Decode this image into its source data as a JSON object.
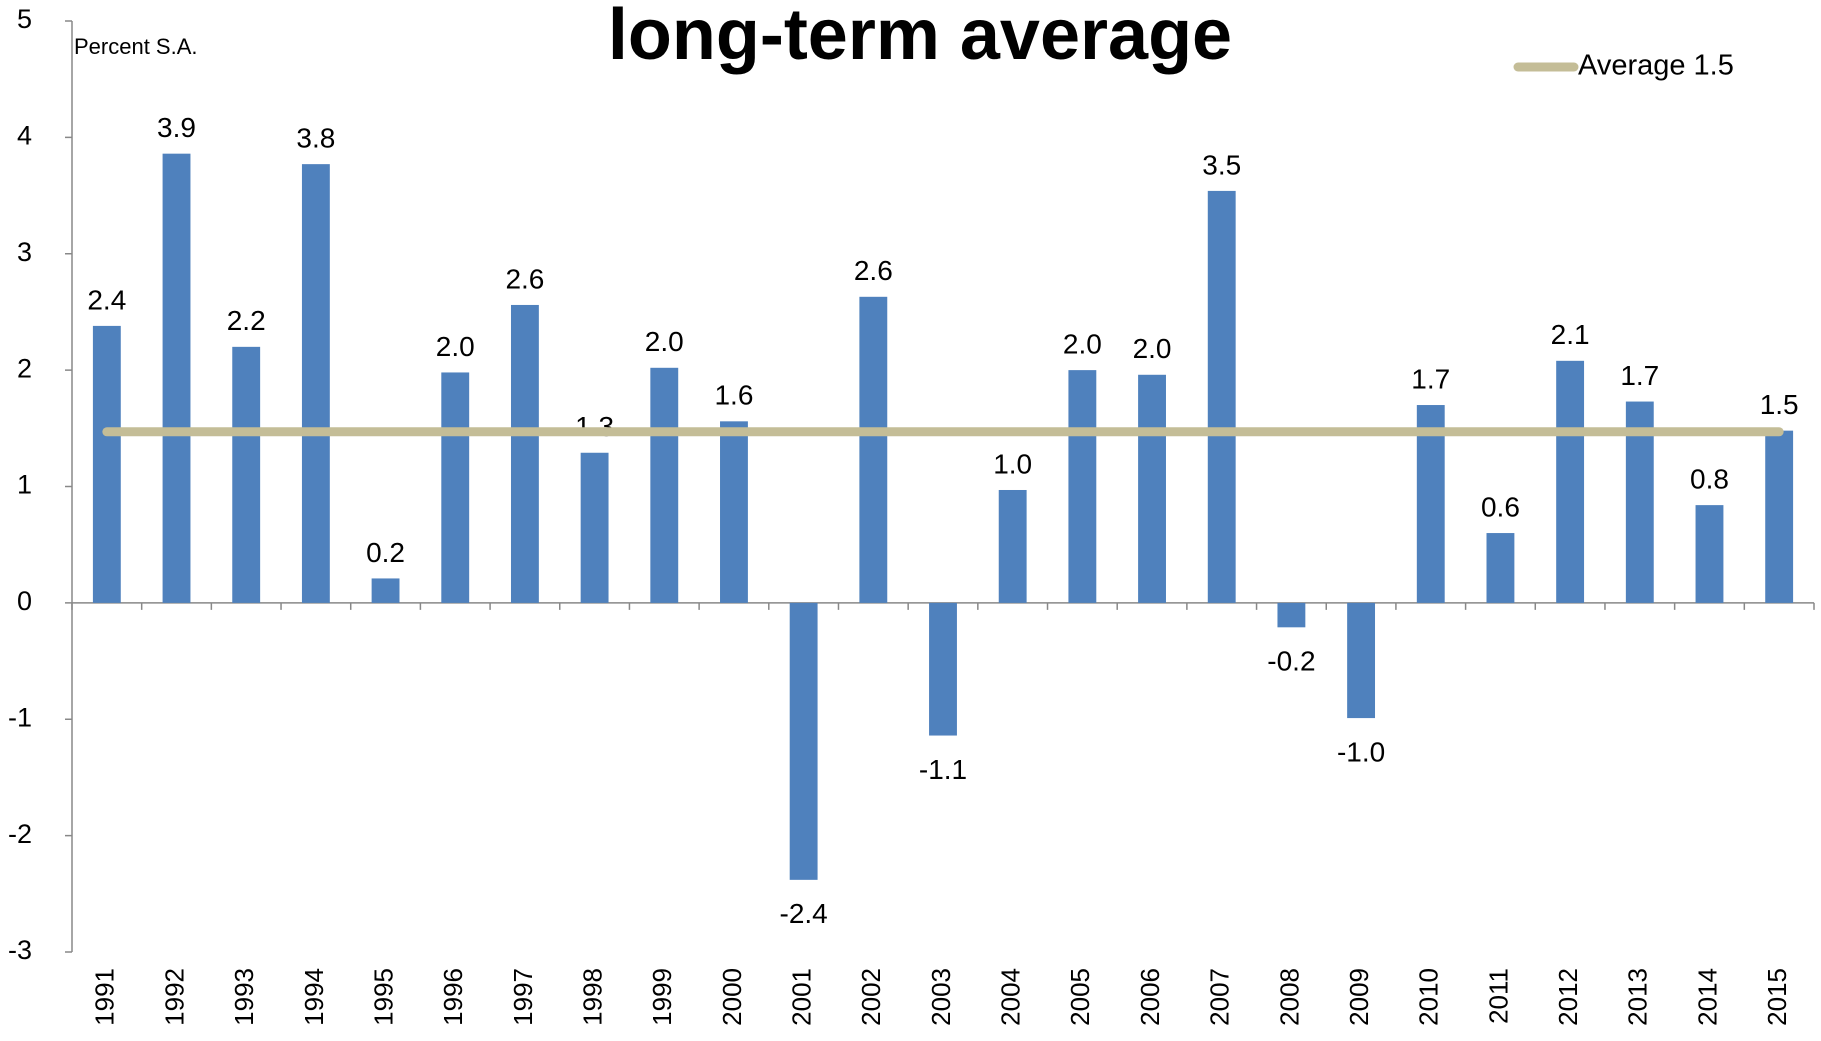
{
  "chart_data": {
    "type": "bar",
    "title": "long-term average",
    "y_label": "Percent S.A.",
    "categories": [
      "1991",
      "1992",
      "1993",
      "1994",
      "1995",
      "1996",
      "1997",
      "1998",
      "1999",
      "2000",
      "2001",
      "2002",
      "2003",
      "2004",
      "2005",
      "2006",
      "2007",
      "2008",
      "2009",
      "2010",
      "2011",
      "2012",
      "2013",
      "2014",
      "2015"
    ],
    "values": [
      2.38,
      3.86,
      2.2,
      3.77,
      0.21,
      1.98,
      2.56,
      1.29,
      2.02,
      1.56,
      -2.38,
      2.63,
      -1.14,
      0.97,
      2.0,
      1.96,
      3.54,
      -0.21,
      -0.99,
      1.7,
      0.6,
      2.08,
      1.73,
      0.84,
      1.48
    ],
    "value_labels": [
      "2.4",
      "3.9",
      "2.2",
      "3.8",
      "0.2",
      "2.0",
      "2.6",
      "1.3",
      "2.0",
      "1.6",
      "-2.4",
      "2.6",
      "-1.1",
      "1.0",
      "2.0",
      "2.0",
      "3.5",
      "-0.2",
      "-1.0",
      "1.7",
      "0.6",
      "2.1",
      "1.7",
      "0.8",
      "1.5"
    ],
    "color": "#4f81bd",
    "average_line": {
      "name": "Average 1.5",
      "value": 1.47,
      "color": "#c4bd97"
    },
    "ylim": [
      -3,
      5
    ],
    "yticks": [
      -3,
      -2,
      -1,
      0,
      1,
      2,
      3,
      4,
      5
    ],
    "grid": false
  }
}
